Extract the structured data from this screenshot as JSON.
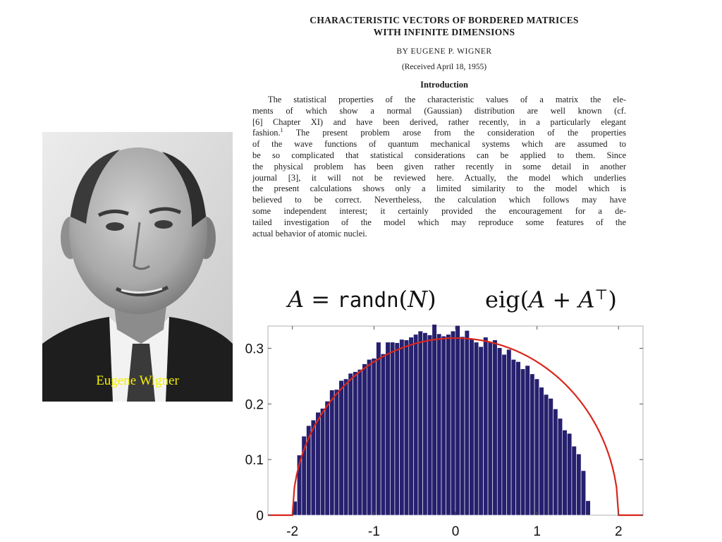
{
  "paper": {
    "title_line1": "CHARACTERISTIC VECTORS OF BORDERED MATRICES",
    "title_line2": "WITH INFINITE DIMENSIONS",
    "byline": "BY EUGENE P. WIGNER",
    "received": "(Received April 18, 1955)",
    "section_heading": "Introduction",
    "paragraph_lines": [
      "The statistical properties of the characteristic values of a matrix the ele-",
      "ments of which show a normal (Gaussian) distribution are well known (cf.",
      "[6] Chapter XI) and have been derived, rather recently, in a particularly elegant",
      "fashion.",
      "The present problem arose from the consideration of the properties",
      "of the wave functions of quantum mechanical systems which are assumed to",
      "be so complicated that statistical considerations can be applied to them. Since",
      "the physical problem has been given rather recently in some detail in another",
      "journal [3], it will not be reviewed here. Actually, the model which underlies",
      "the present calculations shows only a limited similarity to the model which is",
      "believed to be correct. Nevertheless, the calculation which follows may have",
      "some independent interest; it certainly provided the encouragement for a de-",
      "tailed investigation of the model which may reproduce some features of the",
      "actual behavior of atomic nuclei."
    ],
    "footnote_mark": "1"
  },
  "portrait": {
    "caption": "Eugene Wigner",
    "caption_color": "#f3f000"
  },
  "formula": {
    "left_var": "A",
    "left_eq": " = ",
    "left_func": "randn",
    "left_open": "(",
    "left_arg": "N",
    "left_close": ")",
    "right_func": "eig",
    "right_open": "(",
    "right_a1": "A",
    "right_plus": " + ",
    "right_a2": "A",
    "right_sup": "⊤",
    "right_close": ")"
  },
  "chart_data": {
    "type": "bar",
    "bar_color": "#26206e",
    "bar_edge_color": "#ffffff",
    "curve_color": "#d9261c",
    "xlim": [
      -2.3,
      2.3
    ],
    "ylim": [
      0,
      0.34
    ],
    "xticks": [
      -2,
      -1,
      0,
      1,
      2
    ],
    "xtick_labels": [
      "-2",
      "-1",
      "0",
      "1",
      "2"
    ],
    "yticks": [
      0,
      0.1,
      0.2,
      0.3
    ],
    "ytick_labels": [
      "0",
      "0.1",
      "0.2",
      "0.3"
    ],
    "bin_edges_start": -2.0,
    "bin_width": 0.0571,
    "bar_heights": [
      0.025,
      0.108,
      0.142,
      0.161,
      0.171,
      0.185,
      0.192,
      0.205,
      0.225,
      0.226,
      0.242,
      0.245,
      0.255,
      0.258,
      0.262,
      0.272,
      0.28,
      0.282,
      0.311,
      0.29,
      0.311,
      0.311,
      0.31,
      0.316,
      0.315,
      0.32,
      0.325,
      0.331,
      0.328,
      0.324,
      0.343,
      0.326,
      0.322,
      0.325,
      0.331,
      0.341,
      0.321,
      0.332,
      0.317,
      0.311,
      0.303,
      0.32,
      0.312,
      0.315,
      0.301,
      0.289,
      0.298,
      0.28,
      0.276,
      0.263,
      0.269,
      0.254,
      0.245,
      0.23,
      0.217,
      0.21,
      0.191,
      0.174,
      0.153,
      0.147,
      0.124,
      0.11,
      0.08,
      0.026
    ],
    "curve": "semicircle",
    "curve_radius": 2,
    "curve_peak": 0.3183,
    "grid": false
  }
}
